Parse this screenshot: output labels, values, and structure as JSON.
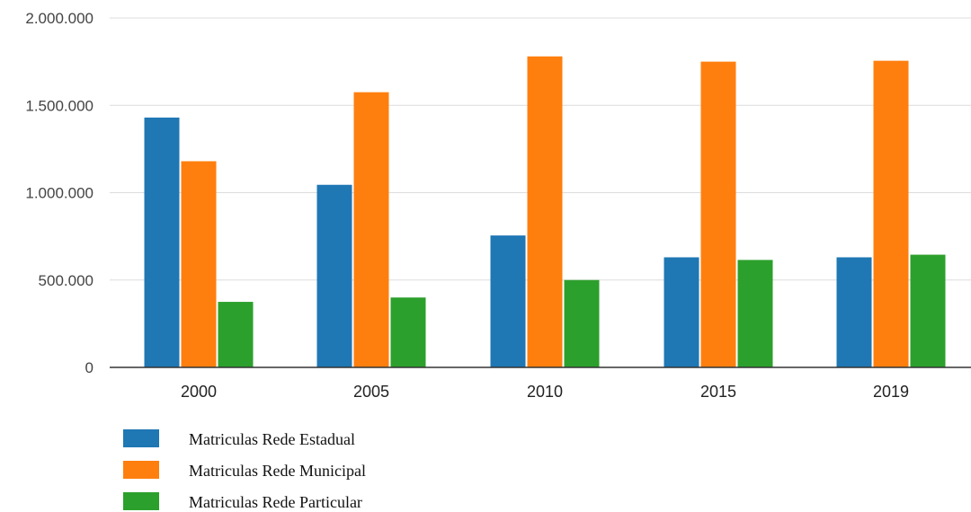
{
  "chart_data": {
    "type": "bar",
    "categories": [
      "2000",
      "2005",
      "2010",
      "2015",
      "2019"
    ],
    "series": [
      {
        "name": "Matriculas Rede Estadual",
        "color": "#1f77b4",
        "values": [
          1430000,
          1045000,
          755000,
          630000,
          630000
        ]
      },
      {
        "name": "Matriculas Rede Municipal",
        "color": "#ff7f0e",
        "values": [
          1180000,
          1575000,
          1780000,
          1750000,
          1755000
        ]
      },
      {
        "name": "Matriculas Rede Particular",
        "color": "#2ca02c",
        "values": [
          375000,
          400000,
          500000,
          615000,
          645000
        ]
      }
    ],
    "ylim": [
      0,
      2000000
    ],
    "yticks": [
      "0",
      "500.000",
      "1.000.000",
      "1.500.000",
      "2.000.000"
    ],
    "title": "",
    "xlabel": "",
    "ylabel": "",
    "grid": true,
    "legend_position": "bottom-left"
  }
}
